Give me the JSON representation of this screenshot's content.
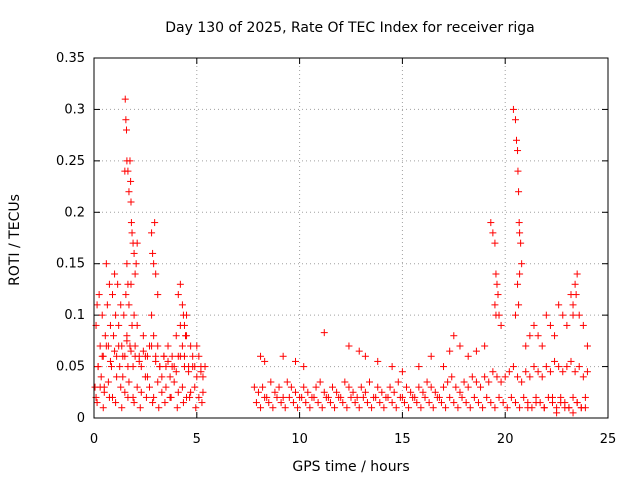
{
  "chart_data": {
    "type": "scatter",
    "title": "Day 130 of 2025, Rate Of TEC Index for receiver riga",
    "xlabel": "GPS time / hours",
    "ylabel": "ROTI / TECUs",
    "xlim": [
      0,
      25
    ],
    "ylim": [
      0,
      0.35
    ],
    "xticks": [
      "0",
      "5",
      "10",
      "15",
      "20",
      "25"
    ],
    "yticks": [
      "0",
      "0.05",
      "0.1",
      "0.15",
      "0.2",
      "0.25",
      "0.3",
      "0.35"
    ],
    "grid": true,
    "marker": "+",
    "color": "#ff0000",
    "series": [
      {
        "x": [
          0.05,
          0.1,
          0.15,
          0.2,
          0.25,
          0.3,
          0.35,
          0.4,
          0.45,
          0.5,
          0.55,
          0.6,
          0.65,
          0.7,
          0.75,
          0.8,
          0.85,
          0.9,
          0.95,
          1.0,
          1.05,
          1.1,
          1.15,
          1.2,
          1.25,
          1.3,
          1.35,
          1.4,
          1.45,
          1.5,
          1.55,
          1.6,
          1.65,
          1.7,
          1.75,
          1.8,
          1.85,
          1.9,
          1.95,
          2.0,
          2.1,
          2.2,
          2.3,
          2.4,
          2.5,
          2.6,
          2.7,
          2.8,
          2.9,
          3.0,
          3.1,
          3.2,
          3.3,
          3.4,
          3.5,
          3.6,
          3.7,
          3.8,
          3.9,
          4.0,
          4.1,
          4.2,
          4.3,
          4.4,
          4.5,
          4.6,
          4.7,
          4.8,
          4.9,
          5.0,
          5.1,
          5.2,
          5.3,
          5.4,
          0.1,
          0.3,
          0.5,
          0.7,
          0.9,
          1.1,
          1.3,
          1.5,
          1.7,
          1.9,
          2.1,
          2.3,
          2.5,
          2.7,
          2.9,
          3.1,
          3.3,
          3.5,
          3.7,
          3.9,
          4.1,
          4.3,
          4.5,
          4.7,
          4.9,
          5.1,
          5.3,
          1.5,
          1.52,
          1.55,
          1.58,
          1.6,
          1.65,
          1.7,
          1.75,
          1.78,
          1.8,
          1.82,
          1.85,
          1.9,
          1.95,
          2.0,
          2.05,
          2.1,
          2.8,
          2.85,
          2.9,
          3.0,
          3.1,
          2.95,
          1.6,
          1.65,
          0.2,
          0.4,
          0.6,
          0.8,
          1.0,
          1.2,
          1.4,
          1.6,
          1.8,
          2.0,
          2.2,
          2.4,
          2.6,
          2.8,
          3.0,
          3.2,
          3.4,
          3.6,
          3.8,
          4.0,
          4.2,
          4.4,
          4.6,
          4.8,
          5.0,
          5.2,
          0.15,
          0.45,
          0.75,
          1.05,
          1.35,
          1.65,
          1.95,
          2.25,
          2.55,
          2.85,
          3.15,
          3.45,
          3.75,
          4.05,
          4.35,
          4.65,
          4.95,
          5.25,
          4.1,
          4.2,
          4.3,
          4.35,
          4.4,
          4.45,
          4.5,
          7.8,
          8.0,
          8.2,
          8.4,
          8.6,
          8.8,
          9.0,
          9.2,
          9.4,
          9.6,
          9.8,
          10.0,
          10.2,
          10.4,
          10.6,
          10.8,
          11.0,
          11.2,
          11.4,
          11.6,
          11.8,
          12.0,
          12.2,
          12.4,
          12.6,
          12.8,
          13.0,
          13.2,
          13.4,
          13.6,
          13.8,
          14.0,
          14.2,
          14.4,
          14.6,
          14.8,
          15.0,
          15.2,
          15.4,
          15.6,
          15.8,
          16.0,
          16.2,
          16.4,
          16.6,
          16.8,
          17.0,
          17.2,
          17.4,
          17.6,
          17.8,
          18.0,
          18.2,
          18.4,
          18.6,
          18.8,
          19.0,
          19.2,
          19.4,
          19.6,
          19.8,
          20.0,
          20.2,
          20.4,
          20.6,
          20.8,
          21.0,
          21.2,
          21.4,
          21.6,
          21.8,
          22.0,
          22.2,
          22.4,
          22.6,
          22.8,
          23.0,
          23.2,
          23.4,
          23.6,
          23.8,
          24.0,
          7.9,
          8.1,
          8.3,
          8.5,
          8.7,
          8.9,
          9.1,
          9.3,
          9.5,
          9.7,
          9.9,
          10.1,
          10.3,
          10.5,
          10.7,
          10.9,
          11.1,
          11.3,
          11.5,
          11.7,
          11.9,
          12.1,
          12.3,
          12.5,
          12.7,
          12.9,
          13.1,
          13.3,
          13.5,
          13.7,
          13.9,
          14.1,
          14.3,
          14.5,
          14.7,
          14.9,
          15.1,
          15.3,
          15.5,
          15.7,
          15.9,
          16.1,
          16.3,
          16.5,
          16.7,
          16.9,
          17.1,
          17.3,
          17.5,
          17.7,
          17.9,
          18.1,
          18.3,
          18.5,
          18.7,
          18.9,
          19.1,
          19.3,
          19.5,
          19.7,
          19.9,
          20.1,
          20.3,
          20.5,
          20.7,
          20.9,
          21.1,
          21.3,
          21.5,
          21.7,
          21.9,
          22.1,
          22.3,
          22.5,
          22.7,
          22.9,
          23.1,
          23.3,
          23.5,
          23.7,
          23.9,
          8.1,
          8.3,
          9.2,
          9.8,
          10.2,
          11.2,
          12.4,
          12.9,
          13.2,
          13.8,
          14.5,
          15.0,
          15.8,
          16.4,
          17.0,
          17.3,
          17.5,
          17.8,
          18.2,
          18.6,
          19.0,
          19.3,
          19.4,
          19.5,
          19.55,
          19.6,
          19.65,
          19.7,
          19.8,
          19.5,
          19.55,
          20.4,
          20.5,
          20.55,
          20.6,
          20.62,
          20.65,
          20.68,
          20.7,
          20.75,
          20.8,
          20.6,
          20.65,
          20.5,
          20.7,
          21.0,
          21.2,
          21.4,
          21.6,
          21.8,
          22.0,
          22.2,
          22.4,
          22.6,
          22.8,
          23.0,
          23.2,
          23.3,
          23.4,
          23.5,
          23.6,
          23.8,
          24.0,
          23.45,
          23.3,
          21.1,
          21.5,
          21.9,
          22.3,
          22.7,
          23.1,
          23.5,
          23.9,
          22.5,
          22.9,
          23.3,
          23.7
        ],
        "y": [
          0.03,
          0.09,
          0.11,
          0.05,
          0.12,
          0.07,
          0.04,
          0.1,
          0.06,
          0.03,
          0.08,
          0.15,
          0.11,
          0.07,
          0.13,
          0.09,
          0.05,
          0.12,
          0.08,
          0.14,
          0.1,
          0.06,
          0.13,
          0.09,
          0.05,
          0.11,
          0.07,
          0.04,
          0.1,
          0.06,
          0.12,
          0.08,
          0.05,
          0.11,
          0.07,
          0.13,
          0.09,
          0.05,
          0.1,
          0.07,
          0.09,
          0.06,
          0.05,
          0.08,
          0.06,
          0.04,
          0.07,
          0.1,
          0.08,
          0.06,
          0.07,
          0.05,
          0.04,
          0.06,
          0.05,
          0.07,
          0.04,
          0.06,
          0.05,
          0.08,
          0.06,
          0.09,
          0.07,
          0.06,
          0.08,
          0.05,
          0.07,
          0.06,
          0.05,
          0.07,
          0.06,
          0.05,
          0.04,
          0.05,
          0.02,
          0.03,
          0.025,
          0.035,
          0.02,
          0.04,
          0.03,
          0.025,
          0.035,
          0.02,
          0.03,
          0.025,
          0.04,
          0.03,
          0.02,
          0.035,
          0.025,
          0.03,
          0.02,
          0.035,
          0.025,
          0.03,
          0.02,
          0.025,
          0.03,
          0.02,
          0.025,
          0.24,
          0.31,
          0.29,
          0.28,
          0.25,
          0.24,
          0.22,
          0.25,
          0.23,
          0.21,
          0.19,
          0.18,
          0.17,
          0.16,
          0.14,
          0.15,
          0.17,
          0.18,
          0.16,
          0.15,
          0.14,
          0.12,
          0.19,
          0.15,
          0.13,
          0.05,
          0.06,
          0.07,
          0.055,
          0.065,
          0.07,
          0.06,
          0.075,
          0.065,
          0.06,
          0.055,
          0.065,
          0.06,
          0.07,
          0.055,
          0.05,
          0.06,
          0.055,
          0.05,
          0.045,
          0.06,
          0.05,
          0.045,
          0.05,
          0.04,
          0.045,
          0.015,
          0.01,
          0.02,
          0.015,
          0.01,
          0.02,
          0.015,
          0.01,
          0.02,
          0.015,
          0.01,
          0.015,
          0.02,
          0.01,
          0.015,
          0.02,
          0.01,
          0.015,
          0.12,
          0.13,
          0.11,
          0.1,
          0.09,
          0.08,
          0.1,
          0.03,
          0.025,
          0.03,
          0.02,
          0.035,
          0.025,
          0.03,
          0.02,
          0.035,
          0.03,
          0.025,
          0.02,
          0.03,
          0.025,
          0.02,
          0.03,
          0.035,
          0.025,
          0.02,
          0.03,
          0.025,
          0.02,
          0.035,
          0.03,
          0.025,
          0.02,
          0.03,
          0.025,
          0.035,
          0.02,
          0.03,
          0.025,
          0.02,
          0.03,
          0.025,
          0.035,
          0.02,
          0.03,
          0.025,
          0.02,
          0.03,
          0.025,
          0.035,
          0.03,
          0.025,
          0.02,
          0.03,
          0.035,
          0.04,
          0.03,
          0.025,
          0.035,
          0.03,
          0.04,
          0.035,
          0.03,
          0.04,
          0.035,
          0.045,
          0.04,
          0.035,
          0.04,
          0.045,
          0.05,
          0.04,
          0.035,
          0.045,
          0.04,
          0.05,
          0.045,
          0.04,
          0.05,
          0.045,
          0.055,
          0.05,
          0.045,
          0.05,
          0.055,
          0.045,
          0.05,
          0.04,
          0.045,
          0.015,
          0.01,
          0.02,
          0.015,
          0.01,
          0.02,
          0.015,
          0.01,
          0.02,
          0.015,
          0.01,
          0.02,
          0.015,
          0.01,
          0.02,
          0.015,
          0.01,
          0.02,
          0.015,
          0.01,
          0.02,
          0.015,
          0.01,
          0.02,
          0.015,
          0.01,
          0.02,
          0.015,
          0.01,
          0.02,
          0.015,
          0.01,
          0.02,
          0.015,
          0.01,
          0.02,
          0.015,
          0.01,
          0.02,
          0.015,
          0.01,
          0.02,
          0.015,
          0.01,
          0.02,
          0.015,
          0.01,
          0.02,
          0.015,
          0.01,
          0.02,
          0.015,
          0.01,
          0.02,
          0.015,
          0.01,
          0.02,
          0.015,
          0.01,
          0.02,
          0.015,
          0.01,
          0.02,
          0.015,
          0.01,
          0.02,
          0.015,
          0.01,
          0.02,
          0.015,
          0.01,
          0.02,
          0.015,
          0.01,
          0.02,
          0.015,
          0.01,
          0.02,
          0.015,
          0.01,
          0.02,
          0.06,
          0.055,
          0.06,
          0.055,
          0.05,
          0.083,
          0.07,
          0.065,
          0.06,
          0.055,
          0.05,
          0.045,
          0.05,
          0.06,
          0.05,
          0.065,
          0.08,
          0.07,
          0.06,
          0.065,
          0.07,
          0.19,
          0.18,
          0.17,
          0.14,
          0.13,
          0.12,
          0.1,
          0.09,
          0.11,
          0.1,
          0.3,
          0.29,
          0.27,
          0.26,
          0.24,
          0.22,
          0.19,
          0.18,
          0.17,
          0.15,
          0.13,
          0.11,
          0.1,
          0.14,
          0.07,
          0.08,
          0.09,
          0.08,
          0.07,
          0.1,
          0.09,
          0.08,
          0.11,
          0.1,
          0.09,
          0.12,
          0.11,
          0.13,
          0.14,
          0.1,
          0.09,
          0.07,
          0.12,
          0.1,
          0.01,
          0.015,
          0.01,
          0.02,
          0.015,
          0.01,
          0.015,
          0.01,
          0.005,
          0.01,
          0.005,
          0.01
        ]
      }
    ]
  }
}
